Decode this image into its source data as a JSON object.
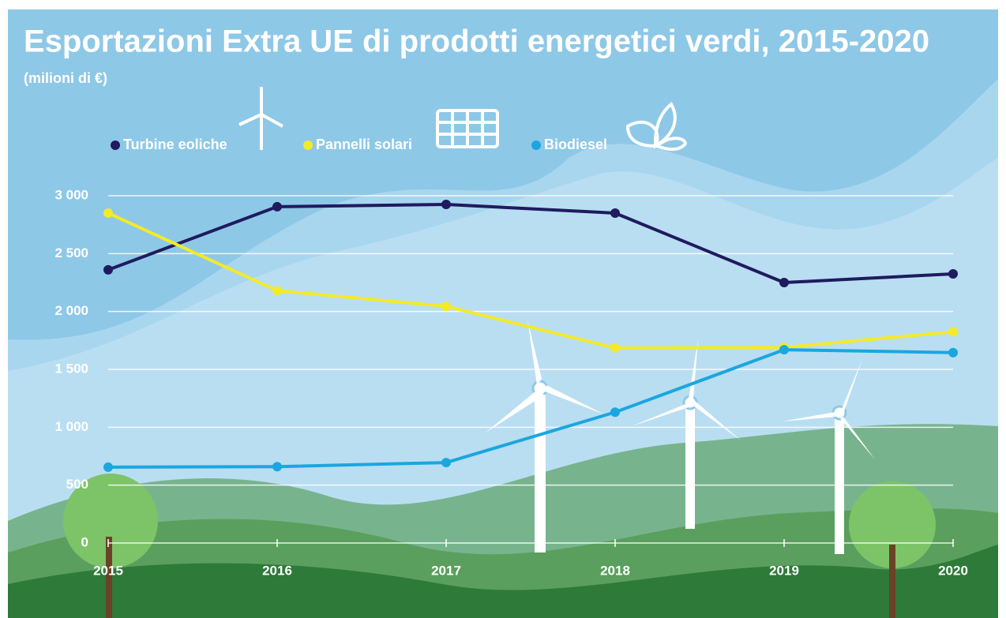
{
  "chart_data": {
    "type": "line",
    "title": "Esportazioni Extra UE di prodotti energetici verdi, 2015-2020",
    "subtitle": "(milioni di €)",
    "categories": [
      "2015",
      "2016",
      "2017",
      "2018",
      "2019",
      "2020"
    ],
    "series": [
      {
        "name": "Turbine eoliche",
        "color": "#1f1b5e",
        "values": [
          2360,
          2905,
          2925,
          2850,
          2250,
          2325
        ]
      },
      {
        "name": "Pannelli solari",
        "color": "#f3ea2b",
        "values": [
          2850,
          2180,
          2045,
          1685,
          1690,
          1825
        ]
      },
      {
        "name": "Biodiesel",
        "color": "#1ba6df",
        "values": [
          655,
          660,
          695,
          1130,
          1670,
          1645
        ]
      }
    ],
    "ylim": [
      0,
      3000
    ],
    "yticks": [
      0,
      500,
      {
        "value": 1000,
        "label": "1 000"
      },
      {
        "value": 1500,
        "label": "1 500"
      },
      {
        "value": 2000,
        "label": "2 000"
      },
      {
        "value": 2500,
        "label": "2 500"
      },
      {
        "value": 3000,
        "label": "3 000"
      }
    ],
    "grid": true
  }
}
